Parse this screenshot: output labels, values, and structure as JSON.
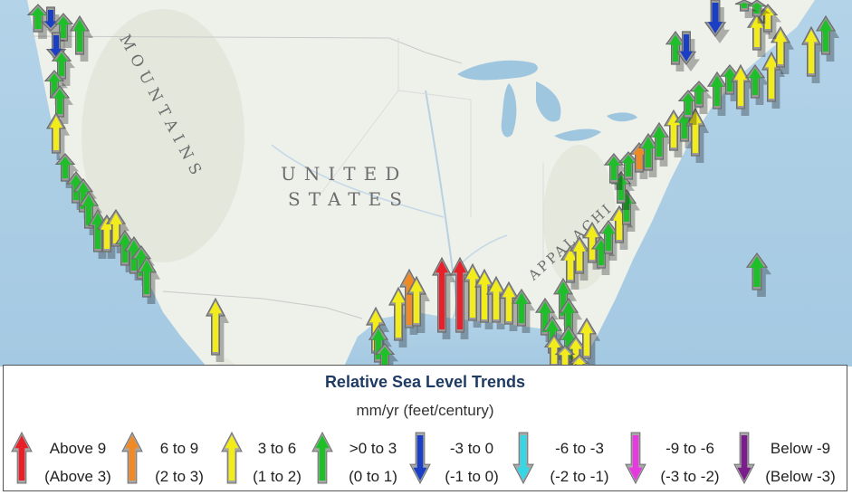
{
  "map": {
    "labels": {
      "mountains": "MOUNTAINS",
      "united": "UNITED",
      "states": "STATES",
      "appalachian": "APPALACHI"
    }
  },
  "legend": {
    "title": "Relative Sea Level Trends",
    "units": "mm/yr (feet/century)",
    "items": [
      {
        "range_mm": "Above 9",
        "range_ft": "(Above 3)",
        "color": "#e8202a",
        "direction": "up"
      },
      {
        "range_mm": "6 to 9",
        "range_ft": "(2 to 3)",
        "color": "#f08a24",
        "direction": "up"
      },
      {
        "range_mm": "3 to 6",
        "range_ft": "(1 to 2)",
        "color": "#f2ec1a",
        "direction": "up"
      },
      {
        "range_mm": ">0 to 3",
        "range_ft": "(0 to 1)",
        "color": "#1fbf2a",
        "direction": "up"
      },
      {
        "range_mm": "-3 to 0",
        "range_ft": "(-1 to 0)",
        "color": "#1a3fc4",
        "direction": "down"
      },
      {
        "range_mm": "-6 to -3",
        "range_ft": "(-2 to -1)",
        "color": "#35d6e6",
        "direction": "down"
      },
      {
        "range_mm": "-9 to -6",
        "range_ft": "(-3 to -2)",
        "color": "#e63adf",
        "direction": "down"
      },
      {
        "range_mm": "Below -9",
        "range_ft": "(Below -3)",
        "color": "#7a1e8c",
        "direction": "down"
      }
    ]
  },
  "colors": {
    "legend_title": "#1f3b63",
    "water": "#a9cde4",
    "land": "#eef0ea"
  }
}
